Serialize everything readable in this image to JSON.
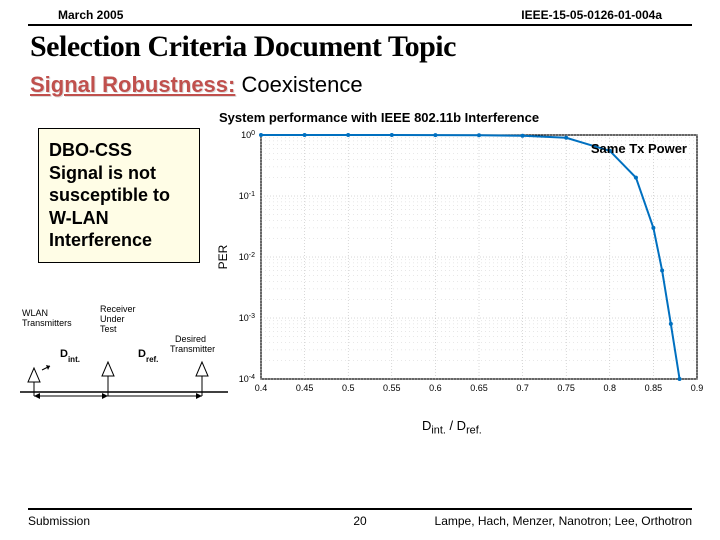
{
  "header": {
    "date": "March 2005",
    "docid": "IEEE-15-05-0126-01-004a"
  },
  "title": "Selection Criteria Document Topic",
  "subtitle": {
    "label": "Signal Robustness:",
    "rest": "Coexistence"
  },
  "callout": "DBO-CSS Signal is not susceptible to W-LAN Interference",
  "chart": {
    "title": "System performance with IEEE 802.11b Interference",
    "annotation": "Same Tx Power",
    "ylabel": "PER",
    "xlabel_html": "D<sub>int.</sub> / D<sub>ref.</sub>",
    "xlim": [
      0.4,
      0.9
    ],
    "ylim_exp": [
      -4,
      0
    ],
    "xticks": [
      0.4,
      0.45,
      0.5,
      0.55,
      0.6,
      0.65,
      0.7,
      0.75,
      0.8,
      0.85,
      0.9
    ],
    "yticks_exp": [
      0,
      -1,
      -2,
      -3,
      -4
    ],
    "line_color": "#0070c0",
    "line_width": 2,
    "grid_color": "#b0b0b0",
    "axis_color": "#000000",
    "background": "#ffffff",
    "data": [
      {
        "x": 0.4,
        "y": 1.0
      },
      {
        "x": 0.45,
        "y": 1.0
      },
      {
        "x": 0.5,
        "y": 1.0
      },
      {
        "x": 0.55,
        "y": 0.998
      },
      {
        "x": 0.6,
        "y": 0.995
      },
      {
        "x": 0.65,
        "y": 0.99
      },
      {
        "x": 0.7,
        "y": 0.97
      },
      {
        "x": 0.75,
        "y": 0.9
      },
      {
        "x": 0.8,
        "y": 0.55
      },
      {
        "x": 0.83,
        "y": 0.2
      },
      {
        "x": 0.85,
        "y": 0.03
      },
      {
        "x": 0.86,
        "y": 0.006
      },
      {
        "x": 0.87,
        "y": 0.0008
      },
      {
        "x": 0.88,
        "y": 0.0001
      }
    ]
  },
  "diagram": {
    "wlan": "WLAN\nTransmitters",
    "rx": "Receiver\nUnder\nTest",
    "tx": "Desired\nTransmitter",
    "dint": "D",
    "dint_sub": "int.",
    "dref": "D",
    "dref_sub": "ref."
  },
  "footer": {
    "left": "Submission",
    "mid": "20",
    "right": "Lampe, Hach, Menzer, Nanotron; Lee, Orthotron"
  }
}
